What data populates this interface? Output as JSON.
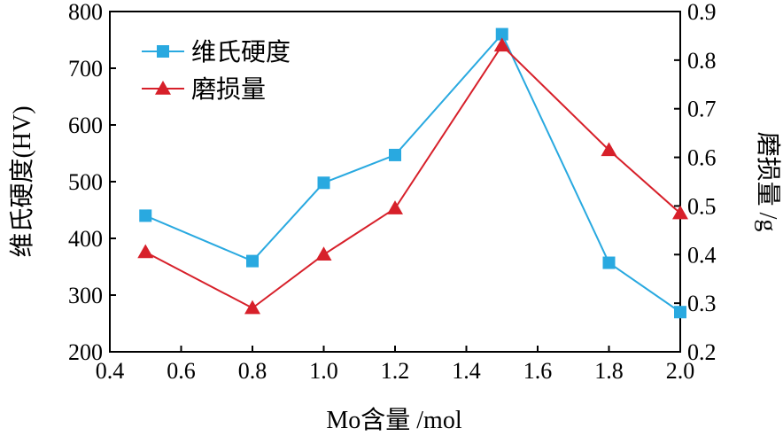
{
  "chart_data": {
    "type": "line",
    "x": [
      0.5,
      0.8,
      1.0,
      1.2,
      1.5,
      1.8,
      2.0
    ],
    "xlabel": "Mo含量 /mol",
    "ylabel": "维氏硬度(HV)",
    "y2label": "磨损量 /g",
    "xlim": [
      0.4,
      2.0
    ],
    "ylim": [
      200,
      800
    ],
    "y2lim": [
      0.2,
      0.9
    ],
    "xticks": [
      "0.4",
      "0.6",
      "0.8",
      "1.0",
      "1.2",
      "1.4",
      "1.6",
      "1.8",
      "2.0"
    ],
    "yticks": [
      "200",
      "300",
      "400",
      "500",
      "600",
      "700",
      "800"
    ],
    "y2ticks": [
      "0.2",
      "0.3",
      "0.4",
      "0.5",
      "0.6",
      "0.7",
      "0.8",
      "0.9"
    ],
    "grid": false,
    "legend_position": "top-left",
    "series": [
      {
        "name": "维氏硬度",
        "axis": "left",
        "marker": "square",
        "color": "#29a9e0",
        "values": [
          440,
          360,
          498,
          547,
          760,
          357,
          270
        ]
      },
      {
        "name": "磨损量",
        "axis": "right",
        "marker": "triangle",
        "color": "#d7202a",
        "values": [
          0.405,
          0.29,
          0.4,
          0.495,
          0.83,
          0.615,
          0.485
        ]
      }
    ]
  }
}
